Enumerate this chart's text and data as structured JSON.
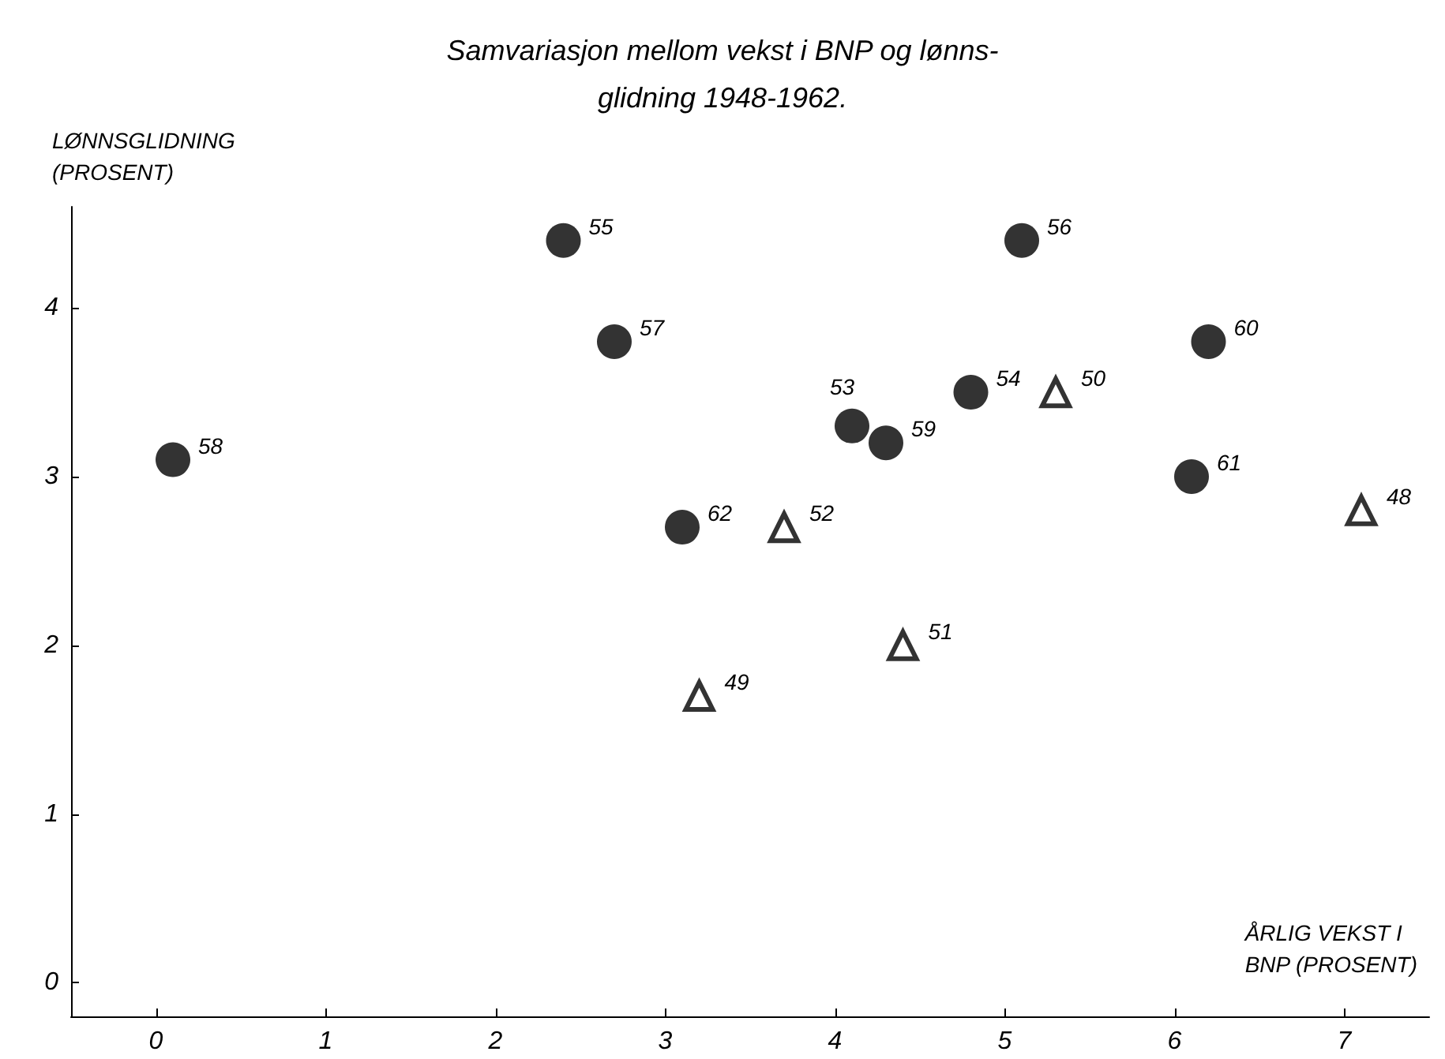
{
  "chart_data": {
    "type": "scatter",
    "title": "Samvariasjon mellom vekst i BNP og lønns-\nglidning 1948-1962.",
    "xlabel": "ÅRLIG VEKST I\nBNP (PROSENT)",
    "ylabel": "LØNNSGLIDNING\n(PROSENT)",
    "series": [
      {
        "color": "#000000",
        "marker": "circle",
        "x": [
          0.1,
          2.4,
          2.7,
          3.1,
          4.1,
          4.3,
          4.8,
          5.1,
          6.2,
          6.1
        ],
        "values": [
          3.1,
          4.4,
          3.8,
          2.7,
          3.3,
          3.2,
          3.5,
          4.4,
          3.8,
          3.0
        ]
      },
      {
        "color": "#000000",
        "marker": "triangle",
        "x": [
          5.3,
          3.7,
          4.4,
          3.2,
          7.1
        ],
        "values": [
          3.5,
          2.7,
          2.0,
          1.7,
          2.8
        ]
      }
    ],
    "annotations": [
      {
        "text": "58",
        "x": 0.1,
        "y": 3.1
      },
      {
        "text": "55",
        "x": 2.4,
        "y": 4.4
      },
      {
        "text": "57",
        "x": 2.7,
        "y": 3.8
      },
      {
        "text": "62",
        "x": 3.1,
        "y": 2.7
      },
      {
        "text": "53",
        "x": 4.1,
        "y": 3.3
      },
      {
        "text": "59",
        "x": 4.3,
        "y": 3.2
      },
      {
        "text": "54",
        "x": 4.8,
        "y": 3.5
      },
      {
        "text": "56",
        "x": 5.1,
        "y": 4.4
      },
      {
        "text": "60",
        "x": 6.2,
        "y": 3.8
      },
      {
        "text": "61",
        "x": 6.1,
        "y": 3.0
      },
      {
        "text": "50",
        "x": 5.3,
        "y": 3.5
      },
      {
        "text": "52",
        "x": 3.7,
        "y": 2.7
      },
      {
        "text": "51",
        "x": 4.4,
        "y": 2.0
      },
      {
        "text": "49",
        "x": 3.2,
        "y": 1.7
      },
      {
        "text": "48",
        "x": 7.1,
        "y": 2.8
      }
    ],
    "xlim": [
      -0.5,
      7.5
    ],
    "xticks": [
      0,
      1,
      2,
      3,
      4,
      5,
      6,
      7
    ],
    "ylim": [
      -0.2,
      4.6
    ],
    "yticks": [
      0,
      1,
      2,
      3,
      4
    ]
  }
}
